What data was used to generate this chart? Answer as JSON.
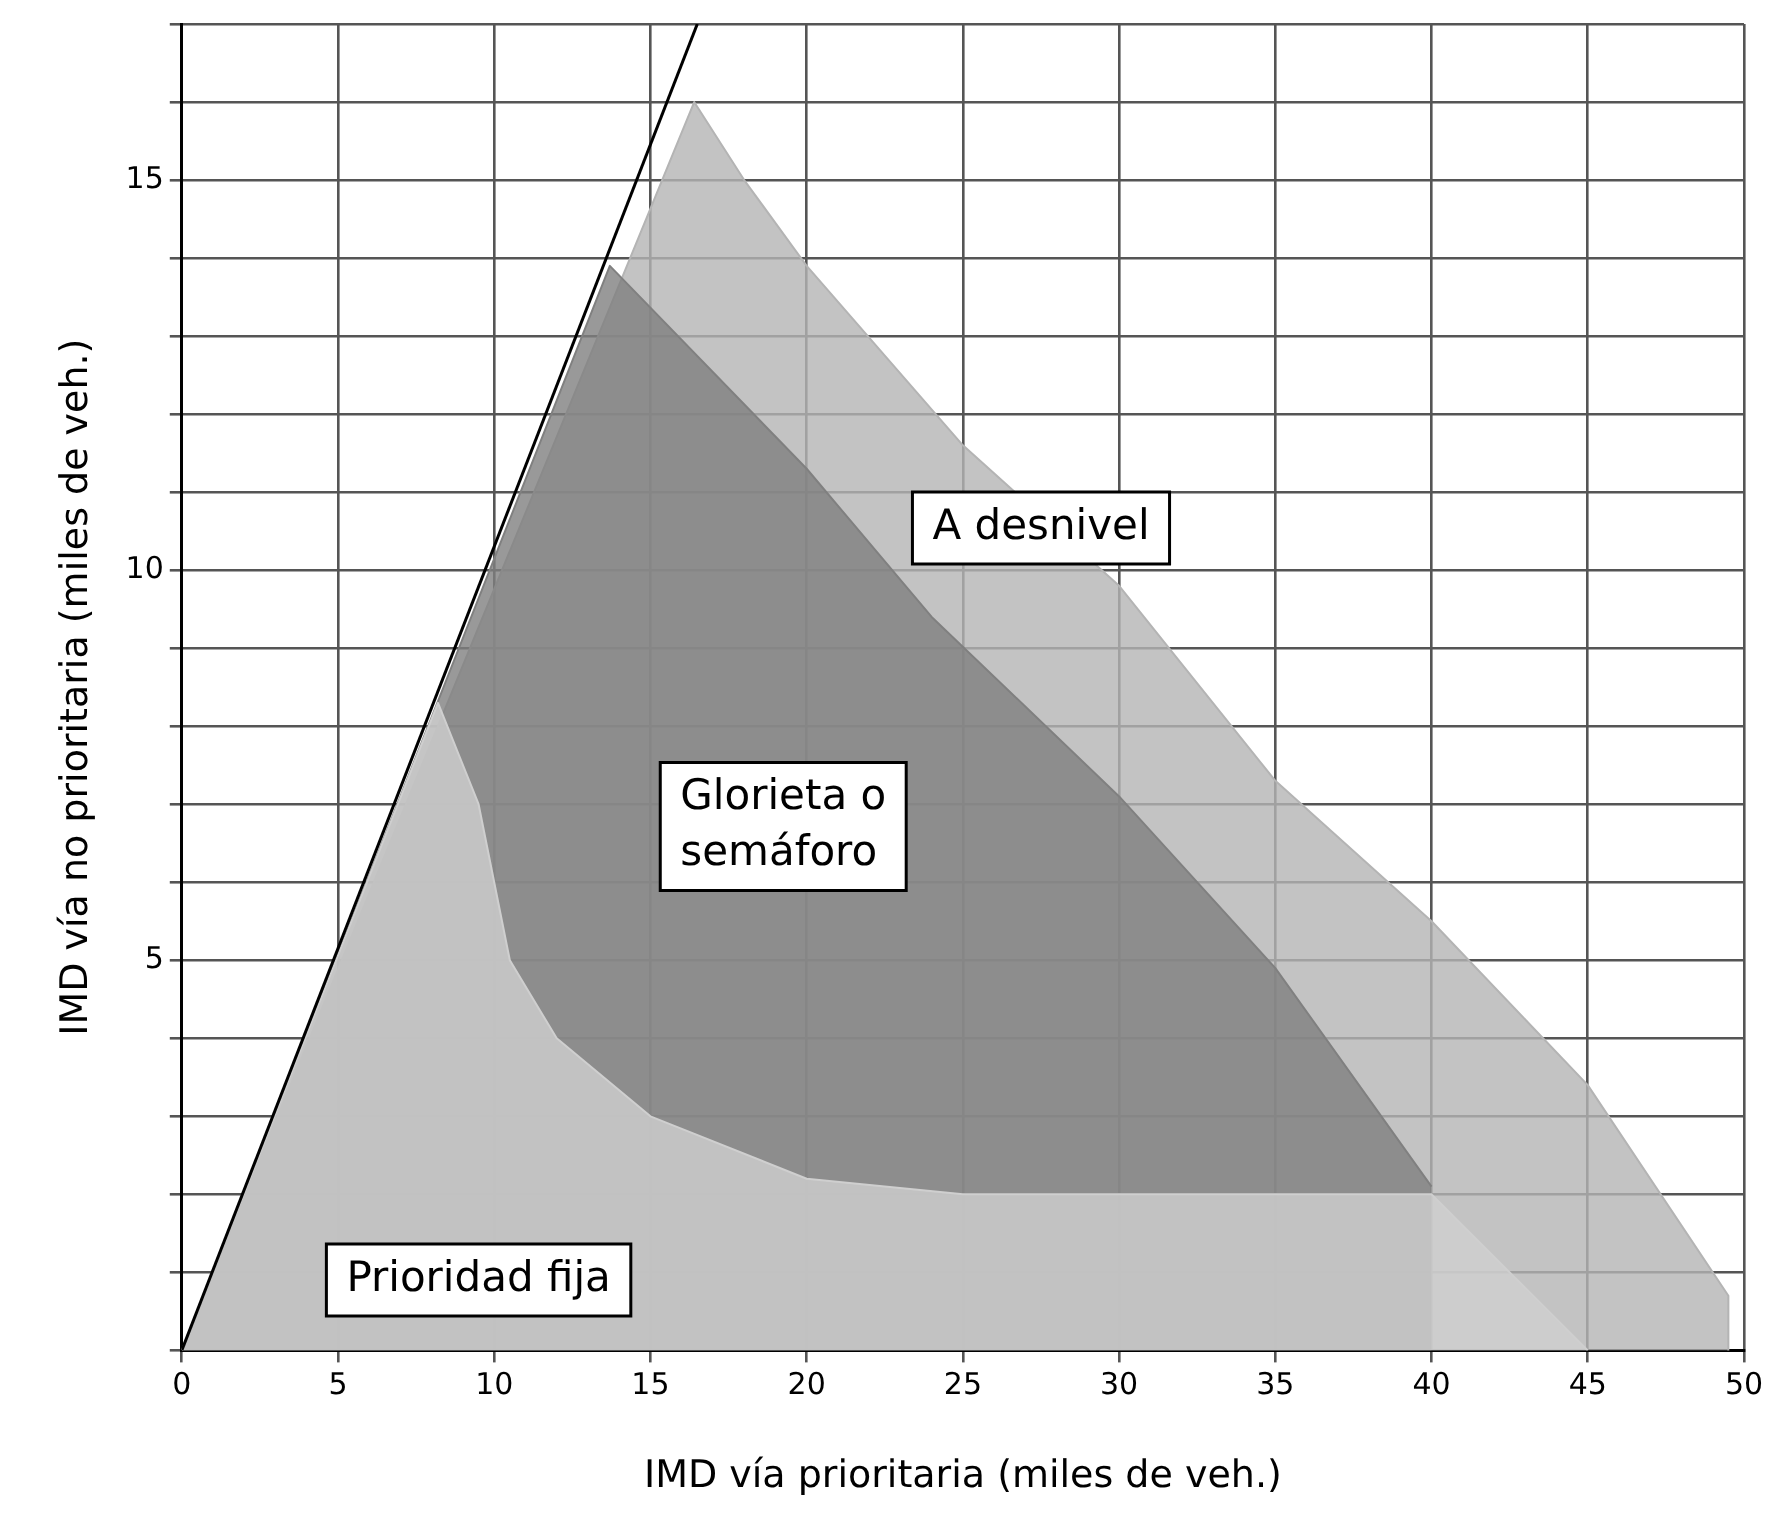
{
  "chart_data": {
    "type": "area",
    "xlabel": "IMD vía prioritaria (miles de veh.)",
    "ylabel": "IMD vía no prioritaria (miles de veh.)",
    "xlim": [
      0,
      50
    ],
    "ylim": [
      0,
      17
    ],
    "xticks": [
      0,
      5,
      10,
      15,
      20,
      25,
      30,
      35,
      40,
      45,
      50
    ],
    "yticks": [
      {
        "value": 0,
        "label": null
      },
      {
        "value": 1,
        "label": null
      },
      {
        "value": 2,
        "label": null
      },
      {
        "value": 3,
        "label": null
      },
      {
        "value": 4,
        "label": null
      },
      5,
      {
        "value": 6,
        "label": null
      },
      {
        "value": 7,
        "label": null
      },
      {
        "value": 8,
        "label": null
      },
      {
        "value": 9,
        "label": null
      },
      10,
      {
        "value": 11,
        "label": null
      },
      {
        "value": 12,
        "label": null
      },
      {
        "value": 13,
        "label": null
      },
      {
        "value": 14,
        "label": null
      },
      15,
      {
        "value": 16,
        "label": null
      },
      {
        "value": 17,
        "label": null
      }
    ],
    "grid": true,
    "legend": false,
    "marker": "none",
    "series": [
      {
        "color": "#b4b4b4",
        "x": [
          0,
          16.4,
          18,
          20,
          25,
          30,
          35,
          40,
          45,
          49.5,
          49.5
        ],
        "values": [
          0,
          16,
          15,
          13.9,
          11.6,
          9.8,
          7.3,
          5.5,
          3.4,
          0.7,
          0
        ]
      },
      {
        "color": "#808080",
        "x": [
          0,
          13.7,
          20,
          24,
          30,
          35,
          40
        ],
        "values": [
          0,
          13.9,
          11.3,
          9.4,
          7.1,
          4.9,
          2.1
        ]
      },
      {
        "color": "#cfcfcf",
        "x": [
          0,
          8.2,
          9.5,
          10.5,
          12,
          15,
          20,
          25,
          40,
          45
        ],
        "values": [
          0,
          8.3,
          7,
          5,
          4,
          3,
          2.2,
          2,
          2,
          0
        ]
      },
      {
        "type": "line",
        "color": "#000000",
        "x": [
          0,
          16.5
        ],
        "values": [
          0,
          17
        ]
      }
    ],
    "annotations": [
      "A desnivel",
      "Glorieta o\nsemáforo",
      "Prioridad fija"
    ]
  }
}
